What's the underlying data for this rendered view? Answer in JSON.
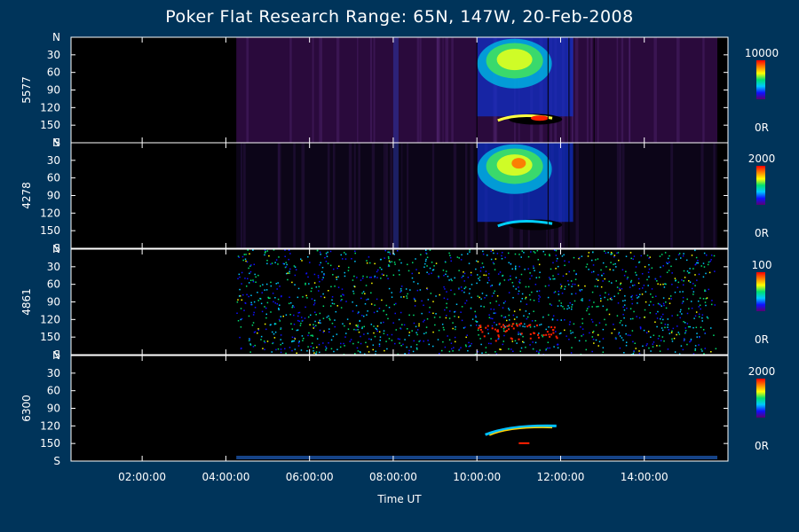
{
  "title": "Poker Flat Research Range: 65N, 147W, 20-Feb-2008",
  "chart_data": {
    "type": "heatmap",
    "title": "Poker Flat Research Range: 65N, 147W, 20-Feb-2008",
    "xlabel": "Time UT",
    "x_ticks": [
      "02:00:00",
      "04:00:00",
      "06:00:00",
      "08:00:00",
      "10:00:00",
      "12:00:00",
      "14:00:00"
    ],
    "x_tick_hours": [
      2,
      4,
      6,
      8,
      10,
      12,
      14
    ],
    "x_range_hours": [
      0.3,
      16.0
    ],
    "data_start_hour": 4.25,
    "y_ticks": [
      "N",
      "30",
      "60",
      "90",
      "120",
      "150",
      "S"
    ],
    "y_tick_values": [
      0,
      30,
      60,
      90,
      120,
      150,
      180
    ],
    "y_range": [
      0,
      180
    ],
    "panels": [
      {
        "name": "5577",
        "colorbar_max": "10000",
        "colorbar_min": "0R"
      },
      {
        "name": "4278",
        "colorbar_max": "2000",
        "colorbar_min": "0R"
      },
      {
        "name": "4861",
        "colorbar_max": "100",
        "colorbar_min": "0R"
      },
      {
        "name": "6300",
        "colorbar_max": "2000",
        "colorbar_min": "0R"
      }
    ],
    "colors": {
      "background": "#00345a",
      "plot_background": "#000000",
      "colormap": [
        "#5a0070",
        "#1010ff",
        "#00c8ff",
        "#00e070",
        "#ffff00",
        "#ff8000",
        "#ff0000"
      ]
    }
  }
}
